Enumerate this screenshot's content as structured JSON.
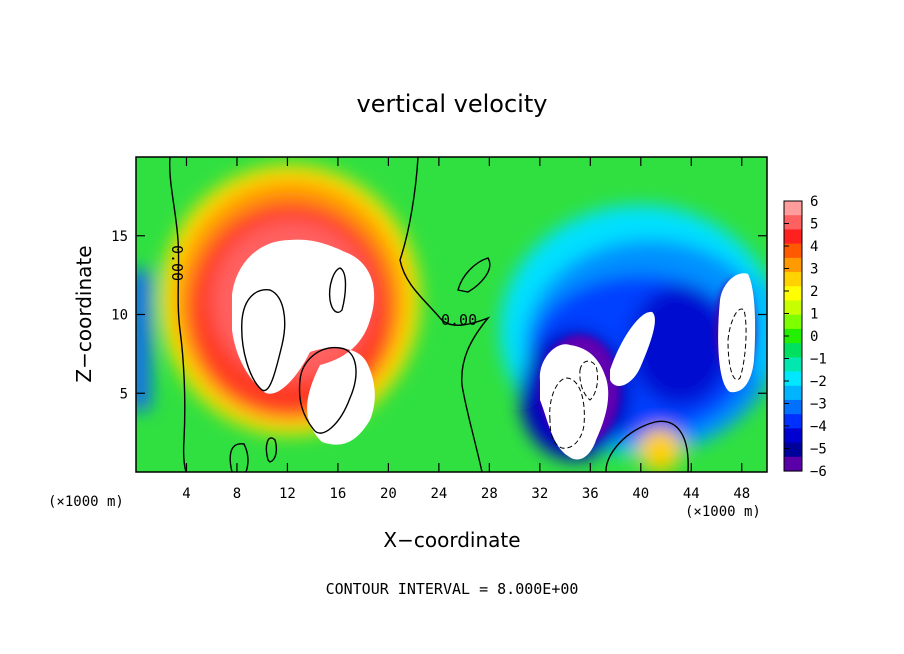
{
  "chart_data": {
    "type": "heatmap",
    "title": "vertical velocity",
    "xlabel": "X−coordinate",
    "ylabel": "Z−coordinate",
    "x_unit": "(×1000 m)",
    "z_unit": "(×1000 m)",
    "xlim": [
      0,
      50
    ],
    "ylim": [
      0,
      20
    ],
    "x_ticks": [
      4,
      8,
      12,
      16,
      20,
      24,
      28,
      32,
      36,
      40,
      44,
      48
    ],
    "x_tick_labels": [
      "4",
      "8",
      "12",
      "16",
      "20",
      "24",
      "28",
      "32",
      "36",
      "40",
      "44",
      "48"
    ],
    "y_ticks": [
      5,
      10,
      15
    ],
    "y_tick_labels": [
      "5",
      "10",
      "15"
    ],
    "colorbar": {
      "min": -6,
      "max": 6,
      "tick_labels": [
        "6",
        "5",
        "4",
        "3",
        "2",
        "1",
        "0",
        "−1",
        "−2",
        "−3",
        "−4",
        "−5",
        "−6"
      ],
      "colors": [
        "#ff9c9c",
        "#ff6060",
        "#ff2020",
        "#ff5a00",
        "#ff9a00",
        "#ffd200",
        "#ffff00",
        "#c8ff00",
        "#7dff00",
        "#22f000",
        "#00e060",
        "#00e8b0",
        "#00e8ff",
        "#00b4ff",
        "#0070ff",
        "#0030ff",
        "#0000d0",
        "#00009a",
        "#5a00a8"
      ]
    },
    "contour_labels": [
      "0.00",
      "0.00"
    ],
    "annotation": "CONTOUR INTERVAL = 8.000E+00"
  }
}
